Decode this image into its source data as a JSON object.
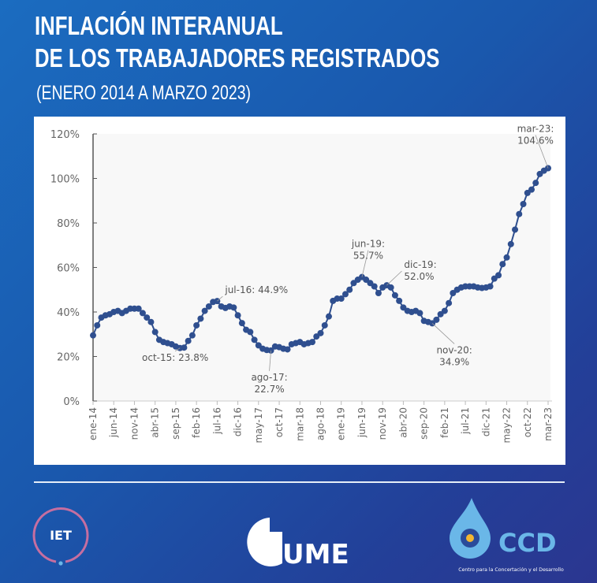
{
  "header": {
    "title_line1": "INFLACIÓN INTERANUAL",
    "title_line2": "DE LOS TRABAJADORES REGISTRADOS",
    "subtitle": "(ENERO 2014 A MARZO 2023)"
  },
  "colors": {
    "series": "#2f4f8f",
    "background": "#1a5fb4",
    "plot_bg": "#f8f8f8",
    "iet_ring": "#c66ea0",
    "ccd": "#6ab7e8"
  },
  "logos": {
    "iet": "IET",
    "umet": "UMET",
    "ccd": "CCD",
    "ccd_tagline": "Centro para la Concertación y el Desarrollo"
  },
  "chart_data": {
    "type": "line",
    "title": "INFLACIÓN INTERANUAL DE LOS TRABAJADORES REGISTRADOS",
    "subtitle": "(ENERO 2014 A MARZO 2023)",
    "xlabel": "",
    "ylabel": "",
    "ylim": [
      0,
      120
    ],
    "yticks": [
      "0%",
      "20%",
      "40%",
      "60%",
      "80%",
      "100%",
      "120%"
    ],
    "ytick_values": [
      0,
      20,
      40,
      60,
      80,
      100,
      120
    ],
    "grid": false,
    "markers": true,
    "x_start": "ene-14",
    "x_tick_labels": [
      "ene-14",
      "jun-14",
      "nov-14",
      "abr-15",
      "sep-15",
      "feb-16",
      "jul-16",
      "dic-16",
      "may-17",
      "oct-17",
      "mar-18",
      "ago-18",
      "ene-19",
      "jun-19",
      "nov-19",
      "abr-20",
      "sep-20",
      "feb-21",
      "jul-21",
      "dic-21",
      "may-22",
      "oct-22",
      "mar-23"
    ],
    "x_tick_every_months": 5,
    "values": [
      29.5,
      34,
      37.5,
      38.5,
      39,
      40,
      40.5,
      39.5,
      40.5,
      41.5,
      41.5,
      41.5,
      39.5,
      37.5,
      35.5,
      31,
      27.5,
      26.5,
      26,
      25.5,
      24.5,
      23.8,
      24,
      27,
      29.5,
      34,
      37,
      40.5,
      42.5,
      44.5,
      44.9,
      42.5,
      41.8,
      42.5,
      42,
      38.5,
      35,
      32,
      31,
      27.5,
      25,
      23.5,
      22.9,
      22.7,
      24.5,
      24.2,
      23.5,
      23.2,
      25.5,
      26,
      26.5,
      25.5,
      26,
      26.5,
      29,
      30.5,
      34,
      38,
      45,
      46,
      46,
      48,
      50,
      53,
      54.5,
      55.7,
      54.5,
      53,
      51.5,
      48.5,
      51,
      52.0,
      51,
      47.5,
      45,
      42,
      40.5,
      40,
      40.5,
      39.5,
      36,
      35.5,
      34.9,
      36.5,
      39,
      40.5,
      44,
      48.5,
      50,
      51,
      51.5,
      51.5,
      51.5,
      51,
      50.8,
      51,
      51.5,
      55,
      56.5,
      61.5,
      64.5,
      70.5,
      77,
      84,
      88.5,
      93.5,
      95,
      98,
      102,
      103.5,
      104.6
    ],
    "annotations": [
      {
        "index": 30,
        "lines": [
          "jul-16: 44.9%"
        ]
      },
      {
        "index": 21,
        "lines": [
          "oct-15: 23.8%"
        ]
      },
      {
        "index": 43,
        "lines": [
          "ago-17:",
          "22.7%"
        ]
      },
      {
        "index": 65,
        "lines": [
          "jun-19:",
          "55.7%"
        ]
      },
      {
        "index": 71,
        "lines": [
          "dic-19:",
          "52.0%"
        ]
      },
      {
        "index": 82,
        "lines": [
          "nov-20:",
          "34.9%"
        ]
      },
      {
        "index": 110,
        "lines": [
          "mar-23:",
          "104.6%"
        ]
      }
    ]
  }
}
